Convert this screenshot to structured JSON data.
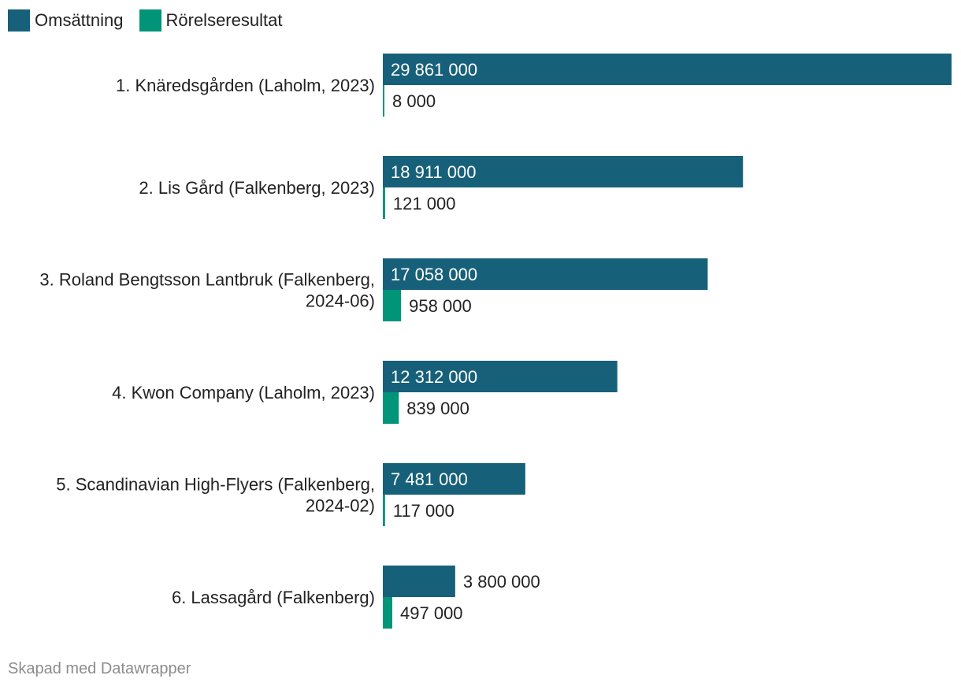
{
  "chart_data": {
    "type": "bar",
    "orientation": "horizontal",
    "categories": [
      [
        "1. Knäredsgården (Laholm, 2023)"
      ],
      [
        "2. Lis Gård (Falkenberg, 2023)"
      ],
      [
        "3. Roland Bengtsson Lantbruk (Falkenberg,",
        "2024-06)"
      ],
      [
        "4. Kwon Company (Laholm, 2023)"
      ],
      [
        "5. Scandinavian High-Flyers (Falkenberg,",
        "2024-02)"
      ],
      [
        "6. Lassagård (Falkenberg)"
      ]
    ],
    "series": [
      {
        "name": "Omsättning",
        "color": "#17607a",
        "values": [
          29861000,
          18911000,
          17058000,
          12312000,
          7481000,
          3800000
        ],
        "labels": [
          "29 861 000",
          "18 911 000",
          "17 058 000",
          "12 312 000",
          "7 481 000",
          "3 800 000"
        ]
      },
      {
        "name": "Rörelseresultat",
        "color": "#009478",
        "values": [
          8000,
          121000,
          958000,
          839000,
          117000,
          497000
        ],
        "labels": [
          "8 000",
          "121 000",
          "958 000",
          "839 000",
          "117 000",
          "497 000"
        ]
      }
    ],
    "xlim": [
      0,
      29861000
    ],
    "grid": false,
    "legend": "top-left"
  },
  "footer": "Skapad med Datawrapper"
}
